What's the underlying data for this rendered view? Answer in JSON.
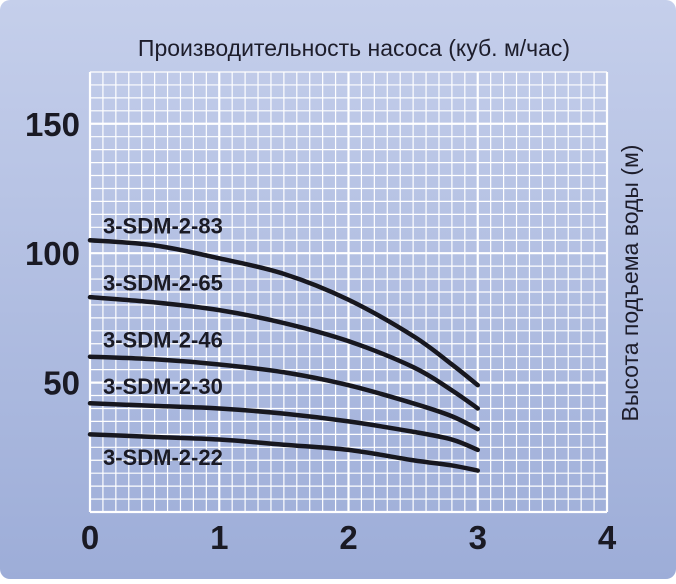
{
  "chart_data": {
    "type": "line",
    "title": "Производительность насоса (куб. м/час)",
    "xlabel": "",
    "ylabel": "Высота подъема воды (м)",
    "xlim": [
      0,
      4
    ],
    "ylim": [
      0,
      170
    ],
    "x_ticks": [
      "0",
      "1",
      "2",
      "3",
      "4"
    ],
    "y_ticks": [
      {
        "value": 50,
        "label": "50"
      },
      {
        "value": 100,
        "label": "100"
      },
      {
        "value": 150,
        "label": "150"
      }
    ],
    "grid": true,
    "series": [
      {
        "name": "3-SDM-2-83",
        "x": [
          0,
          0.5,
          1,
          1.5,
          2,
          2.5,
          2.8,
          3.0
        ],
        "y": [
          105,
          103,
          98,
          92,
          82,
          68,
          57,
          49
        ]
      },
      {
        "name": "3-SDM-2-65",
        "x": [
          0,
          0.5,
          1,
          1.5,
          2,
          2.5,
          2.8,
          3.0
        ],
        "y": [
          83,
          81,
          78,
          73,
          66,
          56,
          47,
          40
        ]
      },
      {
        "name": "3-SDM-2-46",
        "x": [
          0,
          0.5,
          1,
          1.5,
          2,
          2.5,
          2.8,
          3.0
        ],
        "y": [
          60,
          59,
          57,
          54,
          49,
          42,
          37,
          32
        ]
      },
      {
        "name": "3-SDM-2-30",
        "x": [
          0,
          0.5,
          1,
          1.5,
          2,
          2.5,
          2.8,
          3.0
        ],
        "y": [
          42,
          41,
          40,
          38,
          35,
          31,
          28,
          24
        ]
      },
      {
        "name": "3-SDM-2-22",
        "x": [
          0,
          0.5,
          1,
          1.5,
          2,
          2.5,
          2.8,
          3.0
        ],
        "y": [
          30,
          29,
          28,
          26,
          24,
          20,
          18,
          16
        ]
      }
    ]
  },
  "colors": {
    "background": "#a8b6dc",
    "background_light": "#c2cdea",
    "grid": "#ffffff",
    "curve": "#17171f",
    "text": "#1a1a24"
  }
}
